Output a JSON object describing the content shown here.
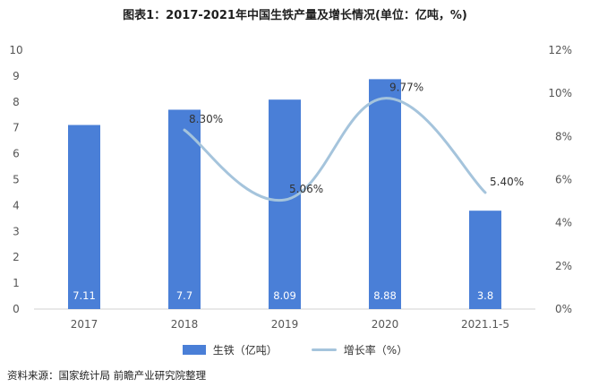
{
  "title": "图表1：2017-2021年中国生铁产量及增长情况(单位：亿吨，%)",
  "source": "资料来源：国家统计局 前瞻产业研究院整理",
  "colors": {
    "bar": "#4a7fd7",
    "line": "#a5c4dc",
    "axis_text": "#555555",
    "label_text": "#ffffff"
  },
  "chart_data": {
    "type": "bar",
    "categories": [
      "2017",
      "2018",
      "2019",
      "2020",
      "2021.1-5"
    ],
    "series": [
      {
        "name": "生铁（亿吨）",
        "type": "bar",
        "axis": "left",
        "values": [
          7.11,
          7.7,
          8.09,
          8.88,
          3.8
        ],
        "labels": [
          "7.11",
          "7.7",
          "8.09",
          "8.88",
          "3.8"
        ]
      },
      {
        "name": "增长率（%）",
        "type": "line",
        "axis": "right",
        "smooth": true,
        "values": [
          null,
          8.3,
          5.06,
          9.77,
          5.4
        ],
        "labels": [
          "",
          "8.30%",
          "5.06%",
          "9.77%",
          "5.40%"
        ]
      }
    ],
    "y_left": {
      "lim": [
        0,
        10
      ],
      "ticks": [
        "0",
        "1",
        "2",
        "3",
        "4",
        "5",
        "6",
        "7",
        "8",
        "9",
        "10"
      ]
    },
    "y_right": {
      "lim": [
        0,
        12
      ],
      "ticks": [
        "0%",
        "2%",
        "4%",
        "6%",
        "8%",
        "10%",
        "12%"
      ]
    },
    "grid": false,
    "legend": "bottom"
  }
}
